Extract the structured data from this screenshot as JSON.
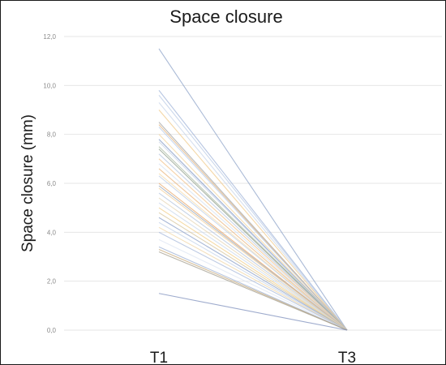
{
  "chart_data": {
    "type": "line",
    "title": "Space closure",
    "xlabel": "",
    "ylabel": "Space closure (mm)",
    "categories": [
      "T1",
      "T3"
    ],
    "ylim": [
      0,
      12
    ],
    "yticks": [
      "0,0",
      "2,0",
      "4,0",
      "6,0",
      "8,0",
      "10,0",
      "12,0"
    ],
    "ytick_values": [
      0,
      2,
      4,
      6,
      8,
      10,
      12
    ],
    "grid": true,
    "legend": "none",
    "series": [
      {
        "values": [
          11.5,
          0
        ],
        "color": "#8ea3c8"
      },
      {
        "values": [
          9.8,
          0
        ],
        "color": "#9fb3d8"
      },
      {
        "values": [
          9.6,
          0
        ],
        "color": "#b9cbe6"
      },
      {
        "values": [
          9.3,
          0
        ],
        "color": "#c8d6ea"
      },
      {
        "values": [
          9.0,
          0
        ],
        "color": "#f0c989"
      },
      {
        "values": [
          8.5,
          0
        ],
        "color": "#a3a3a3"
      },
      {
        "values": [
          8.4,
          0
        ],
        "color": "#e2b27a"
      },
      {
        "values": [
          8.3,
          0
        ],
        "color": "#b7cbe8"
      },
      {
        "values": [
          8.0,
          0
        ],
        "color": "#f3d49c"
      },
      {
        "values": [
          7.8,
          0
        ],
        "color": "#7e95c4"
      },
      {
        "values": [
          7.7,
          0
        ],
        "color": "#c7d3e6"
      },
      {
        "values": [
          7.5,
          0
        ],
        "color": "#a9b9a0"
      },
      {
        "values": [
          7.4,
          0
        ],
        "color": "#8f9e8a"
      },
      {
        "values": [
          7.2,
          0
        ],
        "color": "#b5c7e2"
      },
      {
        "values": [
          7.0,
          0
        ],
        "color": "#f1c38b"
      },
      {
        "values": [
          6.8,
          0
        ],
        "color": "#d3e0f1"
      },
      {
        "values": [
          6.6,
          0
        ],
        "color": "#e9b47c"
      },
      {
        "values": [
          6.4,
          0
        ],
        "color": "#f4dcae"
      },
      {
        "values": [
          6.3,
          0
        ],
        "color": "#bdcde6"
      },
      {
        "values": [
          6.0,
          0
        ],
        "color": "#e8a466"
      },
      {
        "values": [
          5.9,
          0
        ],
        "color": "#9aa7b8"
      },
      {
        "values": [
          5.8,
          0
        ],
        "color": "#f3cf98"
      },
      {
        "values": [
          5.6,
          0
        ],
        "color": "#b3c4dd"
      },
      {
        "values": [
          5.4,
          0
        ],
        "color": "#e6d6b6"
      },
      {
        "values": [
          5.2,
          0
        ],
        "color": "#c9d8ec"
      },
      {
        "values": [
          5.0,
          0
        ],
        "color": "#f2cd86"
      },
      {
        "values": [
          4.8,
          0
        ],
        "color": "#d6c49a"
      },
      {
        "values": [
          4.6,
          0
        ],
        "color": "#8ba0c9"
      },
      {
        "values": [
          4.4,
          0
        ],
        "color": "#c4d3ea"
      },
      {
        "values": [
          4.2,
          0
        ],
        "color": "#f0d6a6"
      },
      {
        "values": [
          4.0,
          0
        ],
        "color": "#a8badb"
      },
      {
        "values": [
          3.7,
          0
        ],
        "color": "#dde6f3"
      },
      {
        "values": [
          3.4,
          0
        ],
        "color": "#9cb0d4"
      },
      {
        "values": [
          3.3,
          0
        ],
        "color": "#c6a878"
      },
      {
        "values": [
          3.2,
          0
        ],
        "color": "#a39e8f"
      },
      {
        "values": [
          1.5,
          0
        ],
        "color": "#7d8fbc"
      }
    ]
  }
}
